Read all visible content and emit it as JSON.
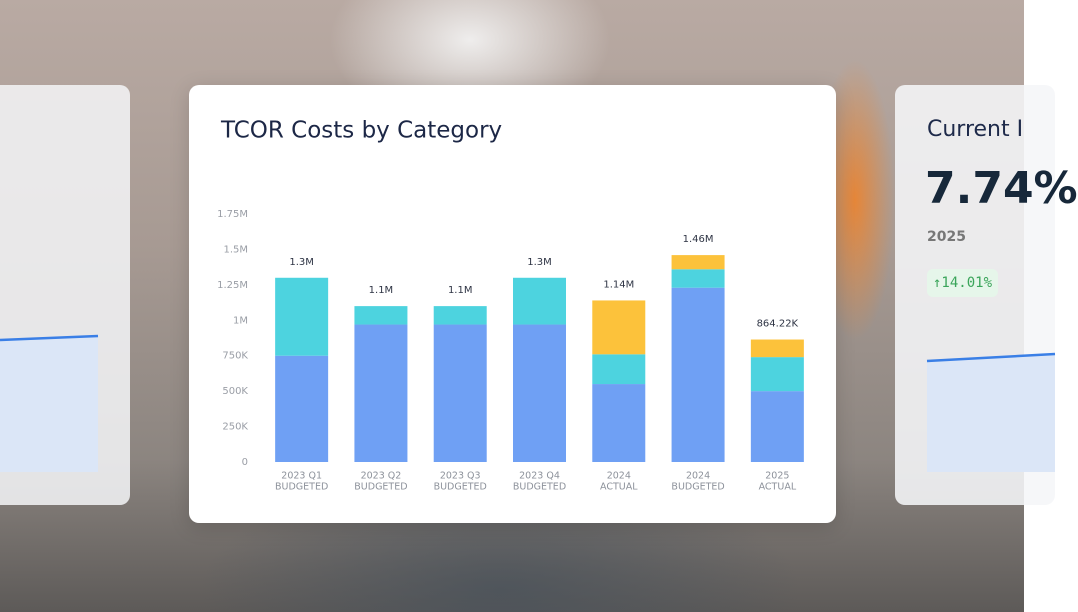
{
  "chart_data": {
    "type": "stacked_bar",
    "title": "TCOR Costs by Category",
    "categories": [
      [
        "2023 Q1",
        "BUDGETED"
      ],
      [
        "2023 Q2",
        "BUDGETED"
      ],
      [
        "2023 Q3",
        "BUDGETED"
      ],
      [
        "2023 Q4",
        "BUDGETED"
      ],
      [
        "2024",
        "ACTUAL"
      ],
      [
        "2024",
        "BUDGETED"
      ],
      [
        "2025",
        "ACTUAL"
      ]
    ],
    "series": [
      {
        "color": "#6fa0f4",
        "values": [
          750000,
          970000,
          970000,
          970000,
          550000,
          1230000,
          500000
        ]
      },
      {
        "color": "#4dd3df",
        "values": [
          550000,
          130000,
          130000,
          330000,
          210000,
          130000,
          240000
        ]
      },
      {
        "color": "#fcc23b",
        "values": [
          0,
          0,
          0,
          0,
          380000,
          100000,
          124220
        ]
      }
    ],
    "total_labels": [
      "1.3M",
      "1.1M",
      "1.1M",
      "1.3M",
      "1.14M",
      "1.46M",
      "864.22K"
    ],
    "ylim": [
      0,
      1750000
    ],
    "yticks": [
      0,
      {
        "value": 250000,
        "label": "250K"
      },
      {
        "value": 500000,
        "label": "500K"
      },
      {
        "value": 750000,
        "label": "750K"
      },
      {
        "value": 1000000,
        "label": "1M"
      },
      {
        "value": 1250000,
        "label": "1.25M"
      },
      {
        "value": 1500000,
        "label": "1.5M"
      },
      {
        "value": 1750000,
        "label": "1.75M"
      }
    ],
    "grid": false
  },
  "side_card": {
    "title": "Current I",
    "value": "7.74%",
    "year": "2025",
    "change": "↑14.01%"
  }
}
